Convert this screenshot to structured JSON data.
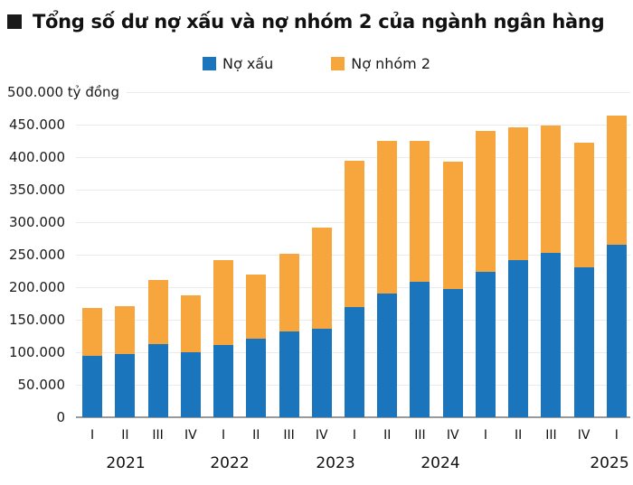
{
  "title": "Tổng số dư nợ xấu và nợ nhóm 2 của ngành ngân hàng",
  "colors": {
    "no_xau_blue": "#1B75BC",
    "no_nhom_2_orange": "#F7A63D",
    "title_bullet": "#1A1A1A",
    "gridline": "#EBEBEB",
    "axis_line": "#9A9A9A",
    "text": "#111111"
  },
  "legend": {
    "items": [
      {
        "label": "Nợ xấu",
        "color": "#1B75BC"
      },
      {
        "label": "Nợ nhóm 2",
        "color": "#F7A63D"
      }
    ]
  },
  "y_axis": {
    "unit_label": "500.000 tỷ đồng",
    "tick_labels": [
      "450.000",
      "400.000",
      "350.000",
      "300.000",
      "250.000",
      "200.000",
      "150.000",
      "100.000",
      "50.000",
      "0"
    ]
  },
  "x_axis": {
    "quarter_labels": [
      "I",
      "II",
      "III",
      "IV",
      "I",
      "II",
      "III",
      "IV",
      "I",
      "II",
      "III",
      "IV",
      "I",
      "II",
      "III",
      "IV",
      "I"
    ],
    "year_labels": [
      "2021",
      "2022",
      "2023",
      "2024",
      "2025"
    ]
  },
  "chart_data": {
    "type": "bar",
    "stacked": true,
    "title": "Tổng số dư nợ xấu và nợ nhóm 2 của ngành ngân hàng",
    "unit": "tỷ đồng",
    "categories": [
      "2021-I",
      "2021-II",
      "2021-III",
      "2021-IV",
      "2022-I",
      "2022-II",
      "2022-III",
      "2022-IV",
      "2023-I",
      "2023-II",
      "2023-III",
      "2023-IV",
      "2024-I",
      "2024-II",
      "2024-III",
      "2024-IV",
      "2025-I"
    ],
    "series": [
      {
        "name": "Nợ xấu",
        "color": "#1B75BC",
        "values": [
          94000,
          97000,
          113000,
          100000,
          111000,
          121000,
          132000,
          136000,
          170000,
          190000,
          208000,
          197000,
          223000,
          242000,
          253000,
          230000,
          265000
        ]
      },
      {
        "name": "Nợ nhóm 2",
        "color": "#F7A63D",
        "values": [
          74000,
          74000,
          98000,
          87000,
          131000,
          99000,
          119000,
          156000,
          224000,
          235000,
          217000,
          196000,
          217000,
          204000,
          195000,
          192000,
          199000
        ]
      }
    ],
    "totals": [
      168000,
      171000,
      211000,
      187000,
      242000,
      220000,
      251000,
      292000,
      394000,
      425000,
      425000,
      393000,
      440000,
      446000,
      448000,
      422000,
      464000
    ],
    "ylim": [
      0,
      500000
    ],
    "ytick_step": 50000,
    "grid": true,
    "legend_position": "top"
  }
}
